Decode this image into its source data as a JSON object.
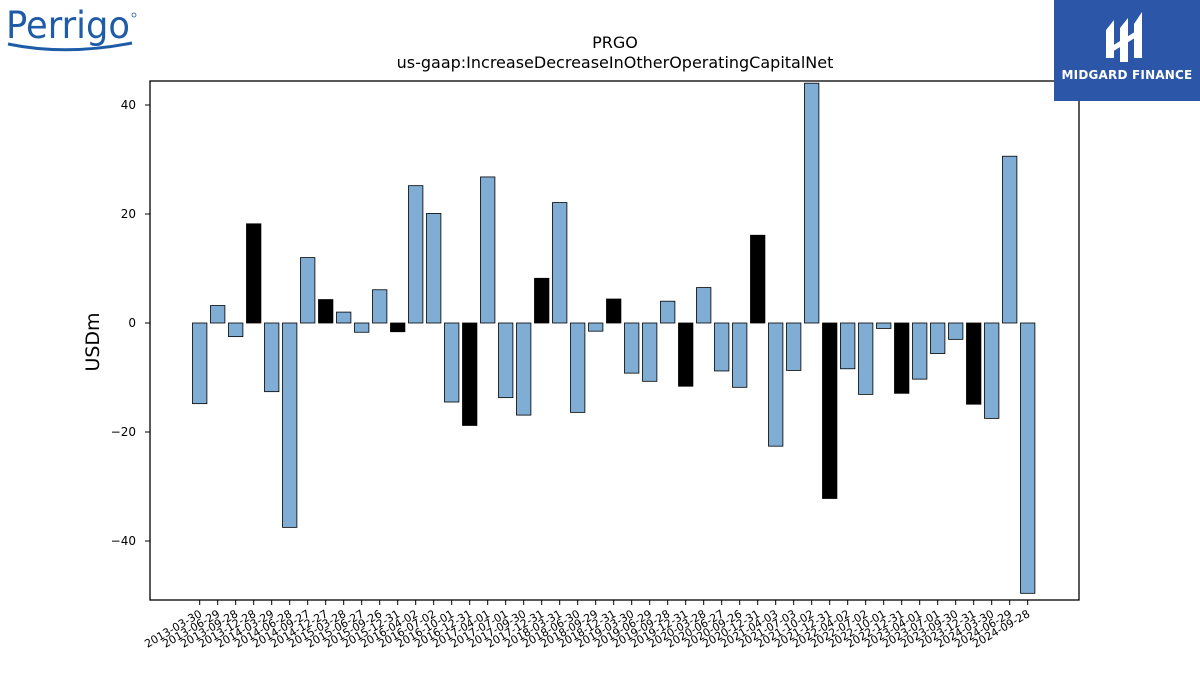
{
  "logos": {
    "brand": "Perrigo",
    "partner": "MIDGARD FINANCE"
  },
  "colors": {
    "bar_default": "#7fadd4",
    "bar_highlight": "#000000",
    "edge": "#000000",
    "partner_bg": "#2c57a8",
    "brand_blue": "#1f5ca8"
  },
  "chart_data": {
    "type": "bar",
    "title": "PRGO",
    "subtitle": "us-gaap:IncreaseDecreaseInOtherOperatingCapitalNet",
    "xlabel": "",
    "ylabel": "USDm",
    "ylim": [
      -50,
      44
    ],
    "yticks": [
      -40,
      -20,
      0,
      20,
      40
    ],
    "grid": false,
    "legend": "none",
    "categories": [
      "2013-03-30",
      "2013-06-29",
      "2013-09-28",
      "2013-12-28",
      "2014-03-29",
      "2014-06-28",
      "2014-09-27",
      "2014-12-27",
      "2015-03-28",
      "2015-06-27",
      "2015-09-26",
      "2015-12-31",
      "2016-04-02",
      "2016-07-02",
      "2016-10-01",
      "2016-12-31",
      "2017-04-01",
      "2017-07-01",
      "2017-09-30",
      "2017-12-31",
      "2018-03-31",
      "2018-06-30",
      "2018-09-29",
      "2018-12-31",
      "2019-03-30",
      "2019-06-29",
      "2019-09-28",
      "2019-12-31",
      "2020-03-28",
      "2020-06-27",
      "2020-09-26",
      "2020-12-31",
      "2021-04-03",
      "2021-07-03",
      "2021-10-02",
      "2021-12-31",
      "2022-04-02",
      "2022-07-02",
      "2022-10-01",
      "2022-12-31",
      "2023-04-01",
      "2023-07-01",
      "2023-09-30",
      "2023-12-31",
      "2024-03-30",
      "2024-06-29",
      "2024-09-28"
    ],
    "values": [
      -14.8,
      3.2,
      -2.5,
      18.2,
      -12.6,
      -37.5,
      12.0,
      4.3,
      2.0,
      -1.7,
      6.1,
      -1.6,
      25.2,
      20.1,
      -14.5,
      -18.8,
      26.8,
      -13.7,
      -16.9,
      8.2,
      22.1,
      -16.4,
      -1.5,
      4.4,
      -9.2,
      -10.7,
      4.0,
      -11.6,
      6.5,
      -8.8,
      -11.8,
      16.1,
      -22.6,
      -8.7,
      44.0,
      -32.2,
      -8.4,
      -13.1,
      -1.0,
      -12.9,
      -10.3,
      -5.6,
      -3.0,
      -14.9,
      -17.5,
      30.6,
      -49.6
    ],
    "highlight": [
      false,
      false,
      false,
      true,
      false,
      false,
      false,
      true,
      false,
      false,
      false,
      true,
      false,
      false,
      false,
      true,
      false,
      false,
      false,
      true,
      false,
      false,
      false,
      true,
      false,
      false,
      false,
      true,
      false,
      false,
      false,
      true,
      false,
      false,
      false,
      true,
      false,
      false,
      false,
      true,
      false,
      false,
      false,
      true,
      false,
      false,
      false
    ]
  }
}
